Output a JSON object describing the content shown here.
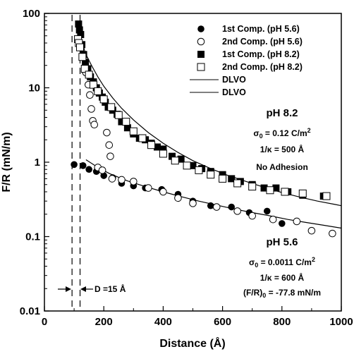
{
  "chart_data": {
    "type": "scatter",
    "xlabel": "Distance (Å)",
    "ylabel": "F/R (mN/m)",
    "xlim": [
      0,
      1000
    ],
    "ylim": [
      0.01,
      100
    ],
    "yscale": "log",
    "grid": false,
    "legend_position": "top-right",
    "x_ticks": [
      {
        "value": 0,
        "label": "0"
      },
      {
        "value": 200,
        "label": "200"
      },
      {
        "value": 400,
        "label": "400"
      },
      {
        "value": 600,
        "label": "600"
      },
      {
        "value": 800,
        "label": "800"
      },
      {
        "value": 1000,
        "label": "1000"
      }
    ],
    "y_ticks": [
      {
        "value": 0.01,
        "label": "0.01"
      },
      {
        "value": 0.1,
        "label": "0.1"
      },
      {
        "value": 1,
        "label": "1"
      },
      {
        "value": 10,
        "label": "10"
      },
      {
        "value": 100,
        "label": "100"
      }
    ],
    "series": [
      {
        "name": "1st Comp. (pH 5.6)",
        "marker": "filled-circle",
        "x": [
          100,
          130,
          150,
          175,
          200,
          230,
          260,
          300,
          340,
          395,
          450,
          500,
          560,
          630,
          690,
          750,
          800
        ],
        "y": [
          0.93,
          0.9,
          0.8,
          0.75,
          0.66,
          0.62,
          0.52,
          0.48,
          0.45,
          0.43,
          0.37,
          0.3,
          0.26,
          0.25,
          0.21,
          0.22,
          0.15
        ]
      },
      {
        "name": "2nd Comp. (pH 5.6)",
        "marker": "open-circle",
        "x": [
          140,
          148,
          153,
          158,
          163,
          168,
          180,
          195,
          210,
          218,
          222,
          228,
          260,
          300,
          350,
          400,
          450,
          500,
          580,
          650,
          700,
          770,
          850,
          900,
          970
        ],
        "y": [
          16,
          11,
          8,
          5.2,
          3.6,
          3.2,
          0.85,
          0.78,
          2.5,
          1.7,
          1.2,
          0.6,
          0.58,
          0.55,
          0.45,
          0.4,
          0.33,
          0.28,
          0.25,
          0.22,
          0.19,
          0.17,
          0.16,
          0.12,
          0.11
        ]
      },
      {
        "name": "1st Comp. (pH 8.2)",
        "marker": "filled-square",
        "x": [
          115,
          118,
          122,
          126,
          132,
          138,
          146,
          155,
          165,
          175,
          185,
          195,
          205,
          215,
          230,
          245,
          260,
          280,
          300,
          320,
          340,
          360,
          380,
          400,
          430,
          460,
          500,
          530,
          560,
          600,
          630,
          660,
          700,
          740,
          780,
          820,
          870,
          940
        ],
        "y": [
          72,
          60,
          52,
          38,
          28,
          22,
          18,
          14,
          12,
          10,
          8.5,
          7.5,
          6.4,
          5.5,
          5,
          4.4,
          3.5,
          2.9,
          2.4,
          2.1,
          2,
          1.8,
          1.6,
          1.5,
          1.2,
          1.1,
          0.9,
          0.82,
          0.75,
          0.68,
          0.6,
          0.55,
          0.5,
          0.45,
          0.45,
          0.4,
          0.36,
          0.35
        ]
      },
      {
        "name": "2nd Comp. (pH 8.2)",
        "marker": "open-square",
        "x": [
          113,
          116,
          120,
          128,
          136,
          150,
          165,
          180,
          200,
          225,
          250,
          275,
          300,
          330,
          360,
          400,
          440,
          480,
          520,
          560,
          600,
          650,
          700,
          760,
          810,
          870,
          950
        ],
        "y": [
          45,
          40,
          35,
          26,
          18,
          15,
          11,
          9,
          7,
          5.5,
          4.3,
          3.5,
          2.6,
          2.1,
          1.7,
          1.3,
          1.05,
          0.9,
          0.78,
          0.68,
          0.6,
          0.52,
          0.47,
          0.42,
          0.4,
          0.38,
          0.35
        ]
      },
      {
        "name": "DLVO",
        "style": "line",
        "fit_for": "pH 8.2",
        "x": [
          115,
          125,
          140,
          160,
          180,
          200,
          230,
          260,
          300,
          350,
          400,
          450,
          500,
          560,
          620,
          680,
          740,
          800,
          860,
          920,
          980,
          1000
        ],
        "y": [
          72,
          42,
          28,
          19.5,
          14,
          10.5,
          7.3,
          5.3,
          3.7,
          2.5,
          1.8,
          1.35,
          1.05,
          0.82,
          0.66,
          0.55,
          0.46,
          0.39,
          0.34,
          0.3,
          0.27,
          0.26
        ]
      },
      {
        "name": "DLVO",
        "style": "line",
        "fit_for": "pH 5.6",
        "x": [
          140,
          180,
          220,
          280,
          340,
          400,
          460,
          520,
          580,
          640,
          700,
          760,
          820,
          880,
          940,
          1000
        ],
        "y": [
          1.08,
          0.85,
          0.7,
          0.56,
          0.47,
          0.4,
          0.345,
          0.3,
          0.265,
          0.235,
          0.21,
          0.19,
          0.17,
          0.155,
          0.142,
          0.13
        ]
      }
    ],
    "vertical_lines": [
      93,
      120
    ],
    "annotations": {
      "ph82_title": "pH 8.2",
      "ph82_sigma": "σ",
      "ph82_sigma_sub": "0",
      "ph82_sigma_val": " = 0.12 C/m",
      "ph82_sigma_sup": "2",
      "ph82_kappa": "1/κ = 500 Å",
      "ph82_adhesion": "No Adhesion",
      "ph56_title": "pH 5.6",
      "ph56_sigma": "σ",
      "ph56_sigma_sub": "0",
      "ph56_sigma_val": " = 0.0011 C/m",
      "ph56_sigma_sup": "2",
      "ph56_kappa": "1/κ = 600 Å",
      "ph56_adh_prefix": "(F/R)",
      "ph56_adh_sub": "0",
      "ph56_adh_val": " = -77.8 mN/m",
      "d_label": "D =15 Å"
    }
  }
}
